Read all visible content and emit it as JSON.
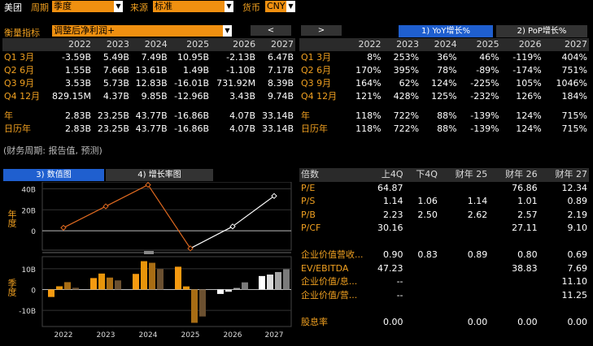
{
  "topbar": {
    "title": "美团",
    "period_label": "周期",
    "period_value": "季度",
    "source_label": "来源",
    "source_value": "标准",
    "currency_label": "货币",
    "currency_value": "CNY"
  },
  "metric": {
    "label": "衡量指标",
    "value": "调整后净利润+",
    "prev_arrow": "<",
    "next_arrow": ">"
  },
  "growth_tabs": {
    "yoy": "1) YoY增长%",
    "pop": "2) PoP增长%"
  },
  "years": [
    "2022",
    "2023",
    "2024",
    "2025",
    "2026",
    "2027"
  ],
  "left_table": {
    "rows": [
      {
        "label": "Q1 3月",
        "values": [
          "-3.59B",
          "5.49B",
          "7.49B",
          "10.95B",
          "-2.13B",
          "6.47B"
        ]
      },
      {
        "label": "Q2 6月",
        "values": [
          "1.55B",
          "7.66B",
          "13.61B",
          "1.49B",
          "-1.10B",
          "7.17B"
        ]
      },
      {
        "label": "Q3 9月",
        "values": [
          "3.53B",
          "5.73B",
          "12.83B",
          "-16.01B",
          "731.92M",
          "8.39B"
        ]
      },
      {
        "label": "Q4 12月",
        "values": [
          "829.15M",
          "4.37B",
          "9.85B",
          "-12.96B",
          "3.43B",
          "9.74B"
        ]
      },
      {
        "label": "年",
        "values": [
          "2.83B",
          "23.25B",
          "43.77B",
          "-16.86B",
          "4.07B",
          "33.14B"
        ]
      },
      {
        "label": "日历年",
        "values": [
          "2.83B",
          "23.25B",
          "43.77B",
          "-16.86B",
          "4.07B",
          "33.14B"
        ]
      }
    ]
  },
  "right_table": {
    "rows": [
      {
        "label": "Q1 3月",
        "values": [
          "8%",
          "253%",
          "36%",
          "46%",
          "-119%",
          "404%"
        ]
      },
      {
        "label": "Q2 6月",
        "values": [
          "170%",
          "395%",
          "78%",
          "-89%",
          "-174%",
          "751%"
        ]
      },
      {
        "label": "Q3 9月",
        "values": [
          "164%",
          "62%",
          "124%",
          "-225%",
          "105%",
          "1046%"
        ]
      },
      {
        "label": "Q4 12月",
        "values": [
          "121%",
          "428%",
          "125%",
          "-232%",
          "126%",
          "184%"
        ]
      },
      {
        "label": "年",
        "values": [
          "118%",
          "722%",
          "88%",
          "-139%",
          "124%",
          "715%"
        ]
      },
      {
        "label": "日历年",
        "values": [
          "118%",
          "722%",
          "88%",
          "-139%",
          "124%",
          "715%"
        ]
      }
    ]
  },
  "fiscal_note": "(财务周期: 报告值, 预测)",
  "chart_tabs": {
    "values": "3) 数值图",
    "growth": "4) 增长率图"
  },
  "ratio_table": {
    "headers": [
      "倍数",
      "上4Q",
      "下4Q",
      "财年 25",
      "财年 26",
      "财年 27"
    ],
    "rows": [
      {
        "label": "P/E",
        "values": [
          "64.87",
          "",
          "",
          "76.86",
          "12.34"
        ]
      },
      {
        "label": "P/S",
        "values": [
          "1.14",
          "1.06",
          "1.14",
          "1.01",
          "0.89"
        ]
      },
      {
        "label": "P/B",
        "values": [
          "2.23",
          "2.50",
          "2.62",
          "2.57",
          "2.19"
        ]
      },
      {
        "label": "P/CF",
        "values": [
          "30.16",
          "",
          "",
          "27.11",
          "9.10"
        ]
      },
      {
        "label": "",
        "values": [
          "",
          "",
          "",
          "",
          ""
        ]
      },
      {
        "label": "企业价值营收...",
        "values": [
          "0.90",
          "0.83",
          "0.89",
          "0.80",
          "0.69"
        ]
      },
      {
        "label": "EV/EBITDA",
        "values": [
          "47.23",
          "",
          "",
          "38.83",
          "7.69"
        ]
      },
      {
        "label": "企业价值/息...",
        "values": [
          "--",
          "",
          "",
          "",
          "11.10"
        ]
      },
      {
        "label": "企业价值/营...",
        "values": [
          "--",
          "",
          "",
          "",
          "11.25"
        ]
      },
      {
        "label": "",
        "values": [
          "",
          "",
          "",
          "",
          ""
        ]
      },
      {
        "label": "股息率",
        "values": [
          "0.00",
          "",
          "0.00",
          "0.00",
          "0.00"
        ]
      }
    ]
  },
  "chart_data": [
    {
      "type": "line",
      "ylabel": "年度",
      "x": [
        "2022",
        "2023",
        "2024",
        "2025",
        "2026",
        "2027"
      ],
      "series": [
        {
          "values": [
            2.83,
            23.25,
            43.77,
            -16.86,
            4.07,
            33.14
          ]
        }
      ],
      "yticks": [
        "40B",
        "20B",
        "0"
      ],
      "ylim": [
        -17,
        45
      ],
      "colors": {
        "actual": "#e06a20",
        "forecast": "#ffffff"
      }
    },
    {
      "type": "bar",
      "ylabel": "季度",
      "x": [
        "2022",
        "2023",
        "2024",
        "2025",
        "2026",
        "2027"
      ],
      "series": [
        {
          "name": "Q1",
          "values": [
            -3.59,
            5.49,
            7.49,
            10.95,
            -2.13,
            6.47
          ]
        },
        {
          "name": "Q2",
          "values": [
            1.55,
            7.66,
            13.61,
            1.49,
            -1.1,
            7.17
          ]
        },
        {
          "name": "Q3",
          "values": [
            3.53,
            5.73,
            12.83,
            -16.01,
            0.73192,
            8.39
          ]
        },
        {
          "name": "Q4",
          "values": [
            0.82915,
            4.37,
            9.85,
            -12.96,
            3.43,
            9.74
          ]
        }
      ],
      "yticks": [
        "10B",
        "0",
        "-10B"
      ],
      "ylim": [
        -17,
        15
      ],
      "colors": {
        "actual": [
          "#f59a10",
          "#e8950a",
          "#a86d14",
          "#6b5030"
        ],
        "forecast": [
          "#ffffff",
          "#dcdcdc",
          "#a6a6a6",
          "#7a7a7a"
        ]
      }
    }
  ]
}
